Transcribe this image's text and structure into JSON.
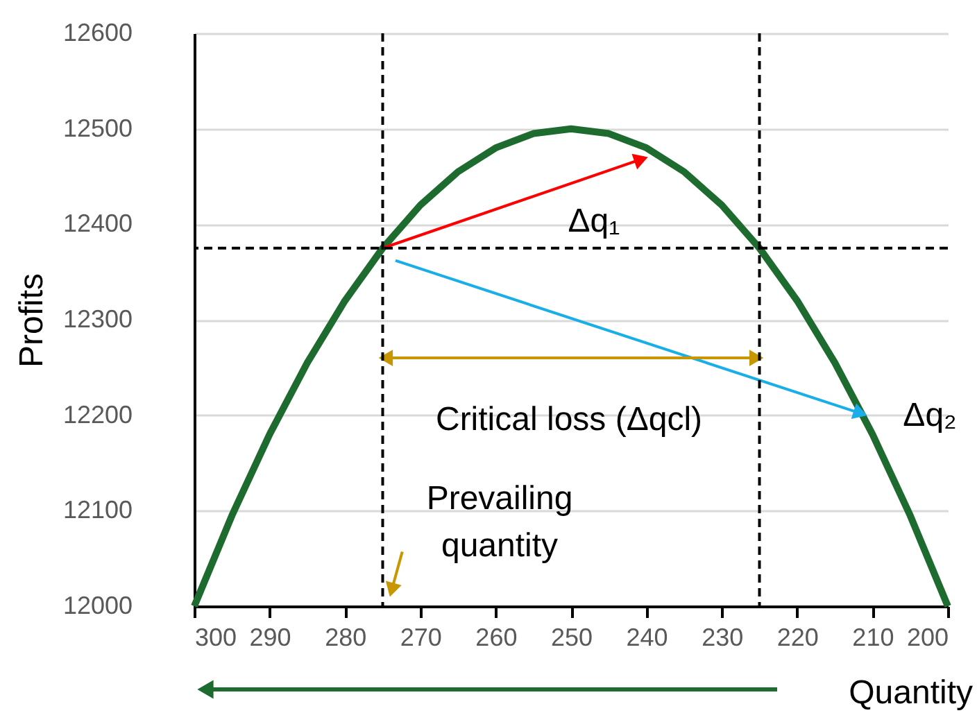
{
  "chart_data": {
    "type": "line",
    "xlabel": "Quantity",
    "ylabel": "Profits",
    "xlim": [
      300,
      200
    ],
    "xticks": [
      300,
      290,
      280,
      270,
      260,
      250,
      240,
      230,
      220,
      210,
      200
    ],
    "ylim": [
      12000,
      12600
    ],
    "yticks": [
      12000,
      12100,
      12200,
      12300,
      12400,
      12500,
      12600
    ],
    "grid": "y",
    "line_style": "solid",
    "series": [
      {
        "color": "#1e6b30",
        "x": [
          300,
          295,
          290,
          285,
          280,
          275,
          270,
          265,
          260,
          255,
          250,
          245,
          240,
          235,
          230,
          225,
          220,
          215,
          210,
          205,
          200
        ],
        "values": [
          12000,
          12095,
          12180,
          12255,
          12320,
          12375,
          12420,
          12455,
          12480,
          12495,
          12500,
          12495,
          12480,
          12455,
          12420,
          12375,
          12320,
          12255,
          12180,
          12095,
          12000
        ]
      },
      {
        "color": "#ff0000",
        "marker": "triangle",
        "x": [
          275,
          240.7
        ],
        "values": [
          12375,
          12468
        ]
      },
      {
        "color": "#19aee8",
        "marker": "triangle",
        "x": [
          273.3,
          211.6
        ],
        "values": [
          12362,
          12202
        ]
      },
      {
        "color": "#c89600",
        "marker": "triangle",
        "x": [
          250,
          274.6
        ],
        "values": [
          12260,
          12260
        ]
      },
      {
        "color": "#c89600",
        "marker": "triangle",
        "x": [
          250,
          225.4
        ],
        "values": [
          12260,
          12260
        ]
      },
      {
        "color": "#c89600",
        "marker": "triangle",
        "x": [
          272.4,
          273.8
        ],
        "values": [
          12057,
          12017
        ]
      }
    ],
    "ref_lines": [
      {
        "axis": "x",
        "value": 275,
        "color": "#000000",
        "line_style": "dashed"
      },
      {
        "axis": "x",
        "value": 225,
        "color": "#000000",
        "line_style": "dashed"
      },
      {
        "axis": "y",
        "value": 12375,
        "color": "#000000",
        "line_style": "dashed"
      }
    ],
    "annotations": [
      "Δq₁",
      "Δq₂",
      "Critical loss (Δqcl)",
      "Prevailing\nquantity"
    ]
  }
}
